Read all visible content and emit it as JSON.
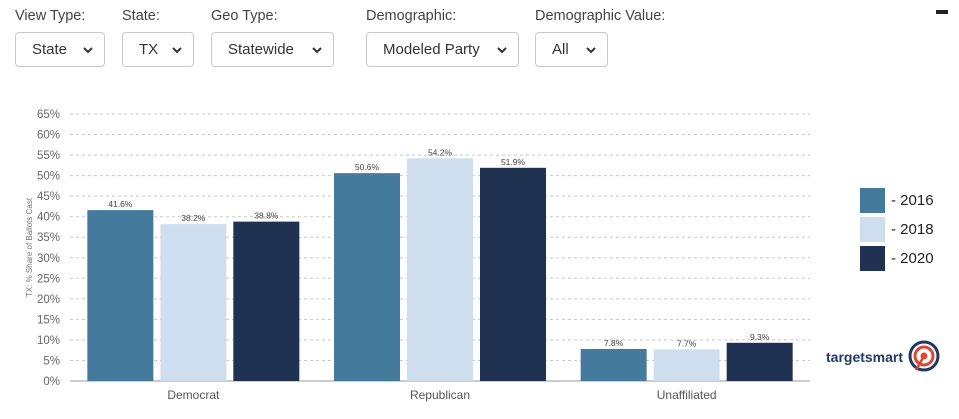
{
  "filters": [
    {
      "label": "View Type:",
      "value": "State"
    },
    {
      "label": "State:",
      "value": "TX"
    },
    {
      "label": "Geo Type:",
      "value": "Statewide"
    },
    {
      "label": "Demographic:",
      "value": "Modeled Party"
    },
    {
      "label": "Demographic Value:",
      "value": "All"
    }
  ],
  "brand": {
    "name": "targetsmart"
  },
  "colors": {
    "2016": "#447b9d",
    "2018": "#cfdeef",
    "2020": "#1f3252"
  },
  "chart_data": {
    "type": "bar",
    "categories": [
      "Democrat",
      "Republican",
      "Unaffiliated"
    ],
    "series": [
      {
        "name": "2016",
        "values": [
          41.6,
          50.6,
          7.8
        ],
        "labels": [
          "41.6%",
          "50.6%",
          "7.8%"
        ]
      },
      {
        "name": "2018",
        "values": [
          38.2,
          54.2,
          7.7
        ],
        "labels": [
          "38.2%",
          "54.2%",
          "7.7%"
        ]
      },
      {
        "name": "2020",
        "values": [
          38.8,
          51.9,
          9.3
        ],
        "labels": [
          "38.8%",
          "51.9%",
          "9.3%"
        ]
      }
    ],
    "legend_labels": [
      "- 2016",
      "- 2018",
      "- 2020"
    ],
    "ylabel": "TX: % Share of Ballots Cast",
    "ylim": [
      0,
      65
    ],
    "yticks": [
      "0%",
      "5%",
      "10%",
      "15%",
      "20%",
      "25%",
      "30%",
      "35%",
      "40%",
      "45%",
      "50%",
      "55%",
      "60%",
      "65%"
    ],
    "grid": true,
    "legend_position": "right"
  }
}
